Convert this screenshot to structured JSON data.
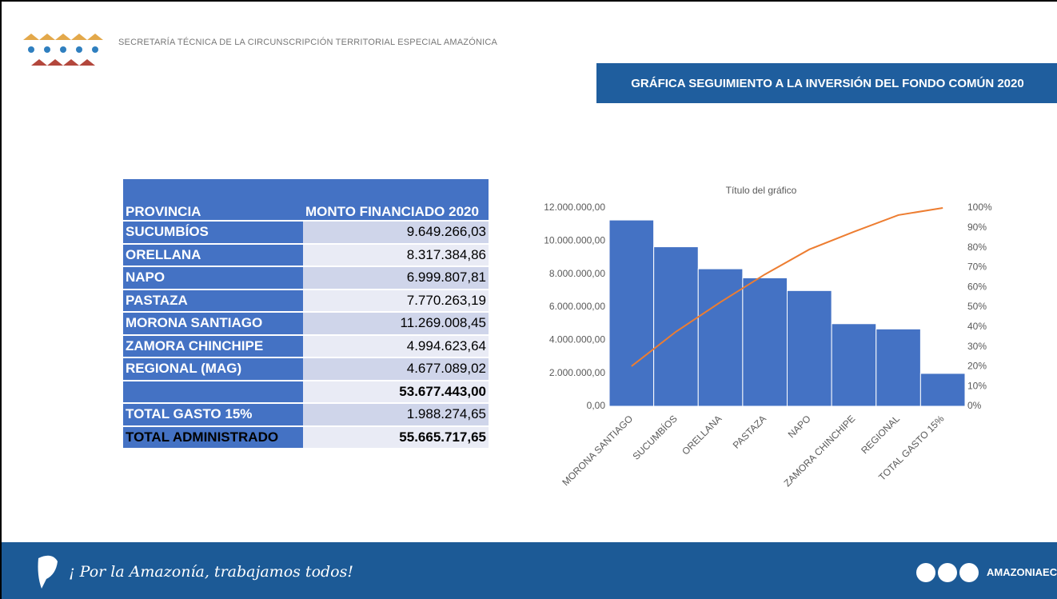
{
  "header": {
    "organization": "SECRETARÍA TÉCNICA DE LA CIRCUNSCRIPCIÓN TERRITORIAL ESPECIAL AMAZÓNICA",
    "title": "GRÁFICA SEGUIMIENTO A LA INVERSIÓN DEL FONDO COMÚN 2020"
  },
  "table": {
    "columns": [
      "PROVINCIA",
      "MONTO FINANCIADO 2020"
    ],
    "rows": [
      [
        "SUCUMBÍOS",
        "9.649.266,03"
      ],
      [
        "ORELLANA",
        "8.317.384,86"
      ],
      [
        "NAPO",
        "6.999.807,81"
      ],
      [
        "PASTAZA",
        "7.770.263,19"
      ],
      [
        "MORONA SANTIAGO",
        "11.269.008,45"
      ],
      [
        "ZAMORA CHINCHIPE",
        "4.994.623,64"
      ],
      [
        "REGIONAL (MAG)",
        "4.677.089,02"
      ],
      [
        null,
        "53.677.443,00"
      ],
      [
        "TOTAL GASTO 15%",
        "1.988.274,65"
      ],
      [
        "TOTAL ADMINISTRADO",
        "55.665.717,65"
      ]
    ]
  },
  "chart_data": {
    "type": "pareto",
    "title": "Título del gráfico",
    "categories": [
      "MORONA SANTIAGO",
      "SUCUMBÍOS",
      "ORELLANA",
      "PASTAZA",
      "NAPO",
      "ZAMORA CHINCHIPE",
      "REGIONAL",
      "TOTAL GASTO 15%"
    ],
    "series": [
      {
        "type": "bar",
        "color": "#4472c4",
        "values": [
          11269008.45,
          9649266.03,
          8317384.86,
          7770263.19,
          6999807.81,
          4994623.64,
          4677089.02,
          1988274.65
        ]
      },
      {
        "type": "line",
        "axis": "y2",
        "color": "#ed7d31",
        "values": [
          20.2,
          37.6,
          52.5,
          66.5,
          79.1,
          88.0,
          96.4,
          100
        ]
      }
    ],
    "ylim": [
      0,
      12000000
    ],
    "yticks": [
      {
        "value": 0,
        "label": "0,00"
      },
      {
        "value": 2000000,
        "label": "2.000.000,00"
      },
      {
        "value": 4000000,
        "label": "4.000.000,00"
      },
      {
        "value": 6000000,
        "label": "6.000.000,00"
      },
      {
        "value": 8000000,
        "label": "8.000.000,00"
      },
      {
        "value": 10000000,
        "label": "10.000.000,00"
      },
      {
        "value": 12000000,
        "label": "12.000.000,00"
      }
    ],
    "y2lim": [
      0,
      100
    ],
    "y2ticks": [
      {
        "value": 0,
        "label": "0%"
      },
      {
        "value": 10,
        "label": "10%"
      },
      {
        "value": 20,
        "label": "20%"
      },
      {
        "value": 30,
        "label": "30%"
      },
      {
        "value": 40,
        "label": "40%"
      },
      {
        "value": 50,
        "label": "50%"
      },
      {
        "value": 60,
        "label": "60%"
      },
      {
        "value": 70,
        "label": "70%"
      },
      {
        "value": 80,
        "label": "80%"
      },
      {
        "value": 90,
        "label": "90%"
      },
      {
        "value": 100,
        "label": "100%"
      }
    ]
  },
  "footer": {
    "slogan": "¡ Por la Amazonía, trabajamos todos!",
    "handle": "AMAZONIAEC"
  }
}
